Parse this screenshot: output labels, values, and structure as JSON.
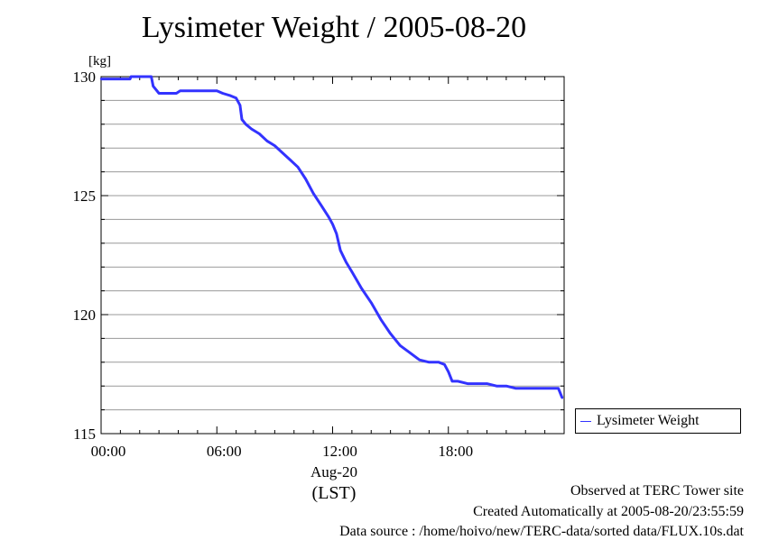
{
  "chart_data": {
    "type": "line",
    "title": "Lysimeter Weight / 2005-08-20",
    "ylabel": "[kg]",
    "ylim": [
      115,
      130
    ],
    "y_ticks": [
      115,
      120,
      125,
      130
    ],
    "y_tick_labels": [
      "115",
      "120",
      "125",
      "130"
    ],
    "xlim": [
      "00:00",
      "24:00"
    ],
    "x_tick_labels": [
      "00:00",
      "06:00",
      "12:00",
      "18:00"
    ],
    "x_date_label": "Aug-20",
    "x_timezone_label": "(LST)",
    "grid": true,
    "legend_position": "right",
    "series": [
      {
        "name": "Lysimeter Weight",
        "color": "#3333ff",
        "x_hours": [
          0.0,
          1.5,
          1.55,
          2.6,
          2.7,
          3.0,
          3.6,
          3.9,
          4.1,
          5.0,
          6.0,
          6.3,
          6.7,
          7.0,
          7.2,
          7.3,
          7.5,
          7.8,
          8.2,
          8.6,
          9.0,
          9.4,
          9.8,
          10.2,
          10.6,
          11.0,
          11.4,
          11.8,
          12.0,
          12.2,
          12.4,
          12.7,
          13.0,
          13.5,
          14.0,
          14.5,
          15.0,
          15.5,
          16.0,
          16.5,
          17.0,
          17.5,
          17.8,
          18.0,
          18.2,
          18.5,
          19.0,
          19.5,
          20.0,
          20.5,
          21.0,
          21.5,
          22.0,
          22.5,
          23.0,
          23.5,
          23.7,
          23.9
        ],
        "values": [
          129.9,
          129.9,
          130.0,
          130.0,
          129.6,
          129.3,
          129.3,
          129.3,
          129.4,
          129.4,
          129.4,
          129.3,
          129.2,
          129.1,
          128.8,
          128.2,
          128.0,
          127.8,
          127.6,
          127.3,
          127.1,
          126.8,
          126.5,
          126.2,
          125.7,
          125.1,
          124.6,
          124.1,
          123.8,
          123.4,
          122.7,
          122.2,
          121.8,
          121.1,
          120.5,
          119.8,
          119.2,
          118.7,
          118.4,
          118.1,
          118.0,
          118.0,
          117.9,
          117.6,
          117.2,
          117.2,
          117.1,
          117.1,
          117.1,
          117.0,
          117.0,
          116.9,
          116.9,
          116.9,
          116.9,
          116.9,
          116.9,
          116.5
        ]
      }
    ]
  },
  "footer": {
    "line1": "Observed at TERC Tower site",
    "line2": "Created Automatically at 2005-08-20/23:55:59",
    "line3": "Data source : /home/hoivo/new/TERC-data/sorted  data/FLUX.10s.dat"
  }
}
